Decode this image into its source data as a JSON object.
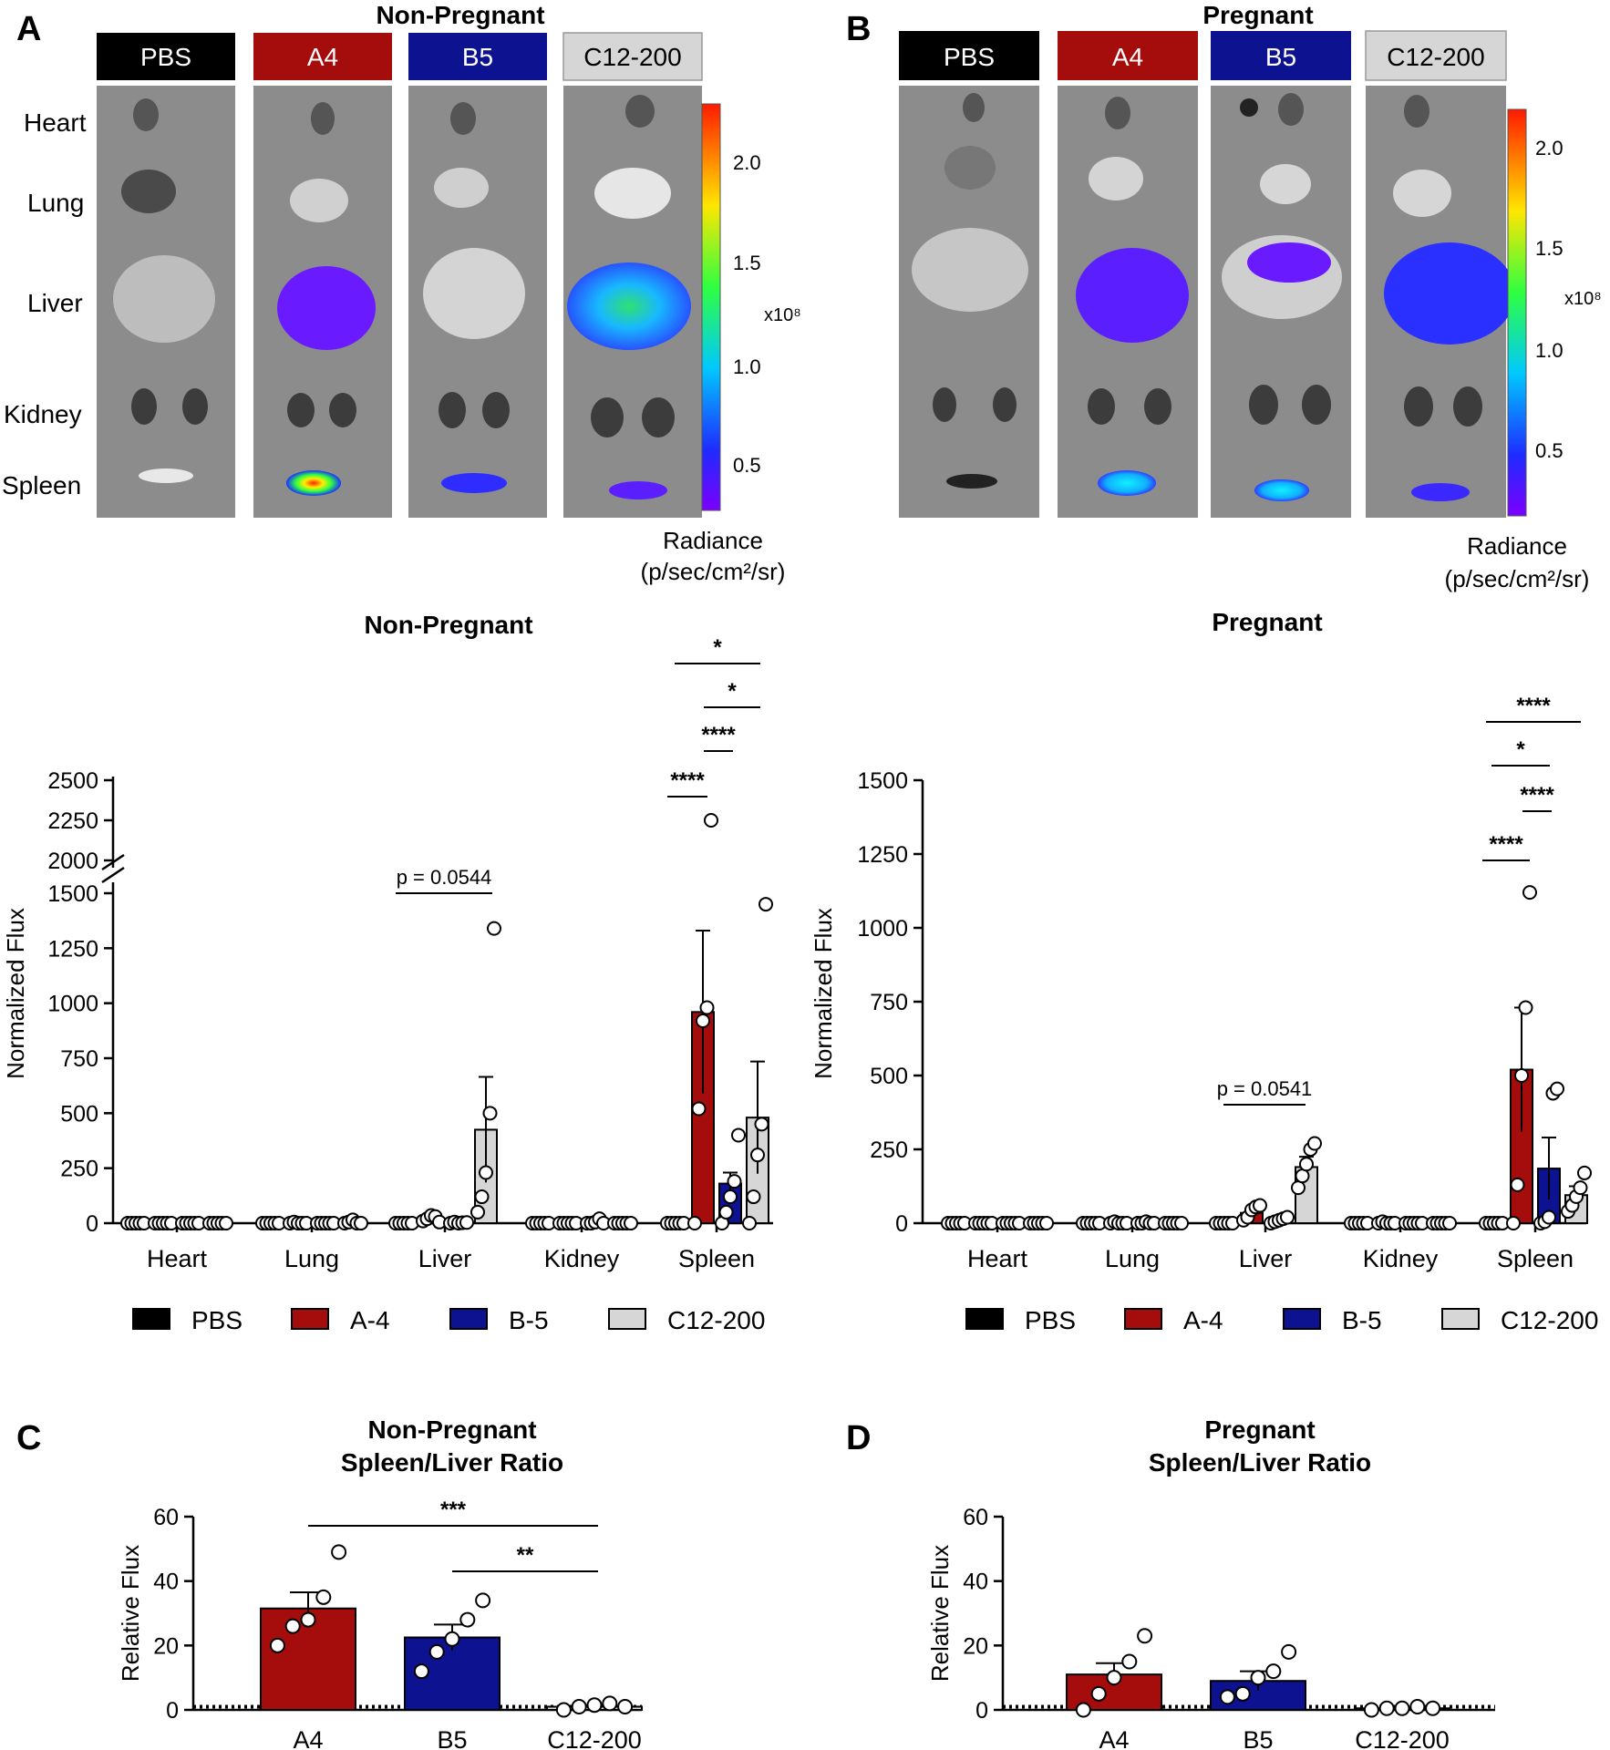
{
  "colors": {
    "PBS": "#000000",
    "A-4": "#a50d0d",
    "B-5": "#0d1290",
    "C12-200": "#d6d6d6",
    "tissue_bg": "#8c8c8c"
  },
  "panels": {
    "A": {
      "letter": "A",
      "title": "Non-Pregnant",
      "groups": [
        "PBS",
        "A4",
        "B5",
        "C12-200"
      ],
      "organs": [
        "Heart",
        "Lung",
        "Liver",
        "Kidney",
        "Spleen"
      ],
      "scale": {
        "ticks": [
          "2.0",
          "1.5",
          "1.0",
          "0.5"
        ],
        "multiplier": "x10⁸",
        "unit_line1": "Radiance",
        "unit_line2": "(p/sec/cm²/sr)"
      }
    },
    "B": {
      "letter": "B",
      "title": "Pregnant",
      "groups": [
        "PBS",
        "A4",
        "B5",
        "C12-200"
      ],
      "scale": {
        "ticks": [
          "2.0",
          "1.5",
          "1.0",
          "0.5"
        ],
        "multiplier": "x10⁸",
        "unit_line1": "Radiance",
        "unit_line2": "(p/sec/cm²/sr)"
      }
    },
    "C": {
      "letter": "C"
    },
    "D": {
      "letter": "D"
    }
  },
  "chart_data": [
    {
      "id": "bar-nonpregnant",
      "type": "bar",
      "title": "Non-Pregnant",
      "ylabel": "Normalized Flux",
      "categories": [
        "Heart",
        "Lung",
        "Liver",
        "Kidney",
        "Spleen"
      ],
      "broken_axis": {
        "lower": [
          0,
          1500
        ],
        "upper": [
          2000,
          2500
        ]
      },
      "yticks_lower": [
        "0",
        "250",
        "500",
        "750",
        "1000",
        "1250",
        "1500"
      ],
      "yticks_upper": [
        "2000",
        "2250",
        "2500"
      ],
      "series": [
        {
          "name": "PBS",
          "values": [
            0,
            0,
            0,
            0,
            0
          ],
          "errors": [
            0,
            0,
            0,
            0,
            0
          ],
          "points": [
            [
              0,
              0,
              0,
              0,
              0
            ],
            [
              0,
              0,
              0,
              0,
              0
            ],
            [
              0,
              0,
              0,
              0,
              0
            ],
            [
              0,
              0,
              0,
              0,
              0
            ],
            [
              0,
              0,
              0,
              0,
              0
            ]
          ]
        },
        {
          "name": "A-4",
          "values": [
            0,
            2,
            20,
            0,
            960
          ],
          "errors": [
            0,
            1,
            8,
            0,
            370
          ],
          "points": [
            [
              0,
              0,
              0,
              0,
              0
            ],
            [
              0,
              5,
              0,
              0,
              0
            ],
            [
              10,
              20,
              35,
              30,
              5
            ],
            [
              0,
              0,
              0,
              0,
              0
            ],
            [
              0,
              520,
              920,
              980,
              2250
            ]
          ]
        },
        {
          "name": "B-5",
          "values": [
            0,
            0,
            2,
            5,
            180
          ],
          "errors": [
            0,
            0,
            1,
            3,
            50
          ],
          "points": [
            [
              0,
              0,
              0,
              0,
              0
            ],
            [
              0,
              0,
              0,
              0,
              0
            ],
            [
              0,
              5,
              0,
              2,
              3
            ],
            [
              0,
              0,
              5,
              20,
              0
            ],
            [
              0,
              50,
              120,
              190,
              400
            ]
          ]
        },
        {
          "name": "C12-200",
          "values": [
            0,
            5,
            425,
            0,
            480
          ],
          "errors": [
            0,
            3,
            240,
            0,
            255
          ],
          "points": [
            [
              0,
              0,
              0,
              0,
              0
            ],
            [
              0,
              5,
              15,
              0,
              0
            ],
            [
              50,
              120,
              230,
              500,
              1340
            ],
            [
              0,
              0,
              0,
              0,
              0
            ],
            [
              0,
              120,
              310,
              450,
              1450
            ]
          ]
        }
      ],
      "significance": [
        {
          "label": "p = 0.0544"
        },
        {
          "label": "*"
        },
        {
          "label": "*"
        },
        {
          "label": "****"
        },
        {
          "label": "****"
        }
      ],
      "legend": [
        "PBS",
        "A-4",
        "B-5",
        "C12-200"
      ]
    },
    {
      "id": "bar-pregnant",
      "type": "bar",
      "title": "Pregnant",
      "ylabel": "Normalized Flux",
      "categories": [
        "Heart",
        "Lung",
        "Liver",
        "Kidney",
        "Spleen"
      ],
      "ylim": [
        0,
        1500
      ],
      "yticks": [
        "0",
        "250",
        "500",
        "750",
        "1000",
        "1250",
        "1500"
      ],
      "series": [
        {
          "name": "PBS",
          "values": [
            0,
            0,
            0,
            0,
            0
          ],
          "errors": [
            0,
            0,
            0,
            0,
            0
          ],
          "points": [
            [
              0,
              0,
              0,
              0,
              0
            ],
            [
              0,
              0,
              0,
              0,
              0
            ],
            [
              0,
              0,
              0,
              0,
              0
            ],
            [
              0,
              0,
              0,
              0,
              0
            ],
            [
              0,
              0,
              0,
              0,
              0
            ]
          ]
        },
        {
          "name": "A-4",
          "values": [
            0,
            2,
            35,
            2,
            520
          ],
          "errors": [
            0,
            1,
            12,
            1,
            210
          ],
          "points": [
            [
              0,
              0,
              0,
              0,
              0
            ],
            [
              0,
              5,
              0,
              0,
              0
            ],
            [
              10,
              20,
              45,
              55,
              60
            ],
            [
              0,
              5,
              0,
              0,
              0
            ],
            [
              0,
              130,
              500,
              730,
              1120
            ]
          ]
        },
        {
          "name": "B-5",
          "values": [
            0,
            2,
            8,
            0,
            185
          ],
          "errors": [
            0,
            1,
            5,
            0,
            105
          ],
          "points": [
            [
              0,
              0,
              0,
              0,
              0
            ],
            [
              0,
              0,
              5,
              0,
              0
            ],
            [
              0,
              5,
              10,
              15,
              20
            ],
            [
              0,
              0,
              0,
              0,
              0
            ],
            [
              0,
              5,
              20,
              440,
              455
            ]
          ]
        },
        {
          "name": "C12-200",
          "values": [
            0,
            0,
            190,
            0,
            95
          ],
          "errors": [
            0,
            0,
            35,
            0,
            30
          ],
          "points": [
            [
              0,
              0,
              0,
              0,
              0
            ],
            [
              0,
              0,
              0,
              0,
              0
            ],
            [
              120,
              160,
              200,
              250,
              270
            ],
            [
              0,
              0,
              0,
              0,
              0
            ],
            [
              40,
              60,
              90,
              120,
              170
            ]
          ]
        }
      ],
      "significance": [
        {
          "label": "p = 0.0541"
        },
        {
          "label": "****"
        },
        {
          "label": "*"
        },
        {
          "label": "****"
        },
        {
          "label": "****"
        }
      ],
      "legend": [
        "PBS",
        "A-4",
        "B-5",
        "C12-200"
      ]
    },
    {
      "id": "ratio-nonpregnant",
      "type": "bar",
      "title": "Non-Pregnant",
      "subtitle": "Spleen/Liver Ratio",
      "ylabel": "Relative Flux",
      "categories": [
        "A4",
        "B5",
        "C12-200"
      ],
      "ylim": [
        0,
        60
      ],
      "yticks": [
        "0",
        "20",
        "40",
        "60"
      ],
      "values": [
        31.5,
        22.5,
        1
      ],
      "errors": [
        5,
        4,
        0.5
      ],
      "points": [
        [
          20,
          26,
          28,
          35,
          49
        ],
        [
          12,
          18,
          22,
          28,
          34
        ],
        [
          0,
          1,
          1.5,
          2,
          1
        ]
      ],
      "significance": [
        {
          "label": "***"
        },
        {
          "label": "**"
        }
      ],
      "reference_line": 1
    },
    {
      "id": "ratio-pregnant",
      "type": "bar",
      "title": "Pregnant",
      "subtitle": "Spleen/Liver Ratio",
      "ylabel": "Relative Flux",
      "categories": [
        "A4",
        "B5",
        "C12-200"
      ],
      "ylim": [
        0,
        60
      ],
      "yticks": [
        "0",
        "20",
        "40",
        "60"
      ],
      "values": [
        11,
        9,
        0.5
      ],
      "errors": [
        3.5,
        3,
        0.2
      ],
      "points": [
        [
          0,
          5,
          10,
          15,
          23
        ],
        [
          4,
          5,
          10,
          12,
          18
        ],
        [
          0,
          0.5,
          0.5,
          1,
          0.5
        ]
      ],
      "significance": [],
      "reference_line": 1
    }
  ]
}
